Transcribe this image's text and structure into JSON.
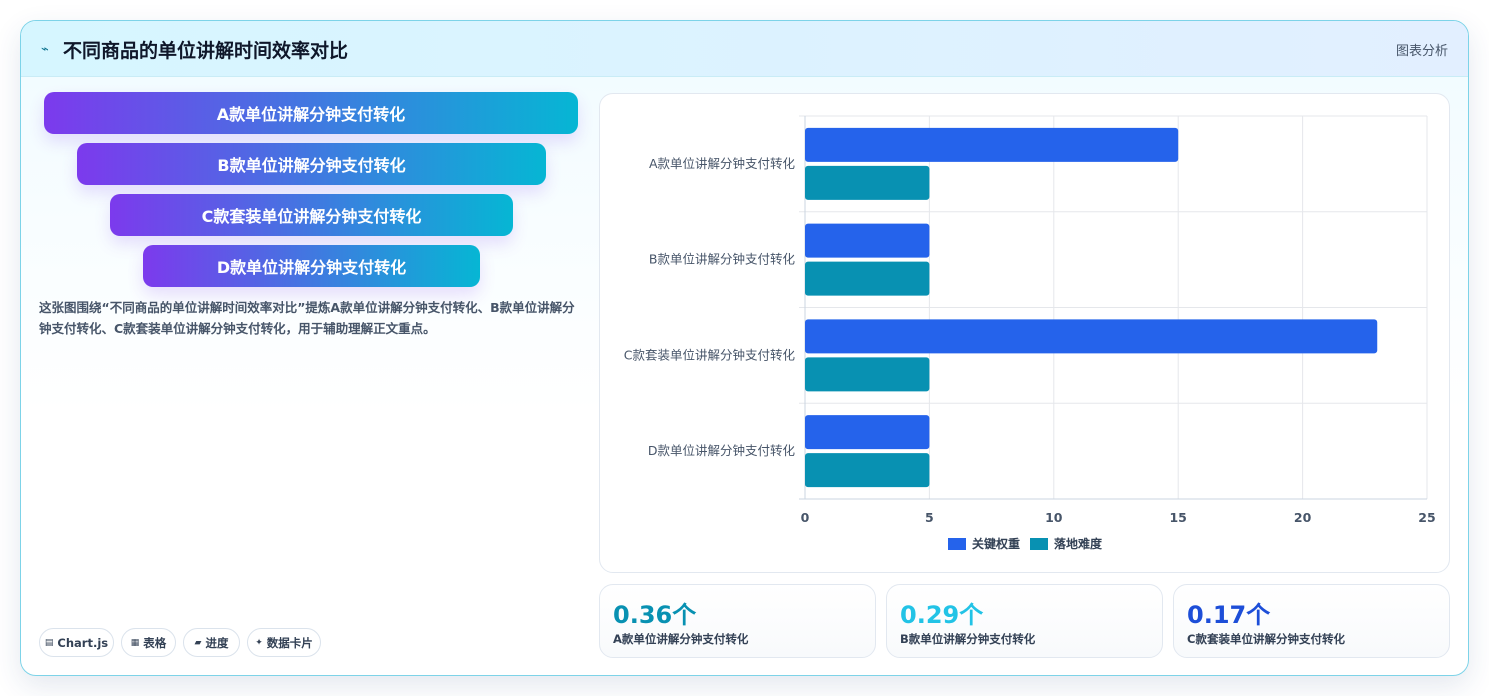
{
  "header": {
    "icon": "chart-line-icon",
    "icon_glyph": "⌁",
    "title": "不同商品的单位讲解时间效率对比",
    "tag": "图表分析"
  },
  "funnel": {
    "items": [
      {
        "label": "A款单位讲解分钟支付转化"
      },
      {
        "label": "B款单位讲解分钟支付转化"
      },
      {
        "label": "C款套装单位讲解分钟支付转化"
      },
      {
        "label": "D款单位讲解分钟支付转化"
      }
    ]
  },
  "description": "这张图围绕“不同商品的单位讲解时间效率对比”提炼A款单位讲解分钟支付转化、B款单位讲解分钟支付转化、C款套装单位讲解分钟支付转化，用于辅助理解正文重点。",
  "pills": [
    {
      "icon": "chart-icon",
      "glyph": "▤",
      "label": "Chart.js"
    },
    {
      "icon": "table-icon",
      "glyph": "▦",
      "label": "表格"
    },
    {
      "icon": "progress-icon",
      "glyph": "▰",
      "label": "进度"
    },
    {
      "icon": "sparkle-icon",
      "glyph": "✦",
      "label": "数据卡片"
    }
  ],
  "chart_data": {
    "type": "bar",
    "orientation": "horizontal",
    "categories": [
      "A款单位讲解分钟支付转化",
      "B款单位讲解分钟支付转化",
      "C款套装单位讲解分钟支付转化",
      "D款单位讲解分钟支付转化"
    ],
    "series": [
      {
        "name": "关键权重",
        "color": "#2563eb",
        "values": [
          15,
          5,
          23,
          5
        ]
      },
      {
        "name": "落地难度",
        "color": "#0891b2",
        "values": [
          5,
          5,
          5,
          5
        ]
      }
    ],
    "xlim": [
      0,
      25
    ],
    "xticks": [
      0,
      5,
      10,
      15,
      20,
      25
    ],
    "grid": true,
    "legend": "bottom"
  },
  "stats": [
    {
      "value": "0.36个",
      "label": "A款单位讲解分钟支付转化",
      "color": "#0891b2"
    },
    {
      "value": "0.29个",
      "label": "B款单位讲解分钟支付转化",
      "color": "#22c3e6"
    },
    {
      "value": "0.17个",
      "label": "C款套装单位讲解分钟支付转化",
      "color": "#1d4ed8"
    }
  ]
}
